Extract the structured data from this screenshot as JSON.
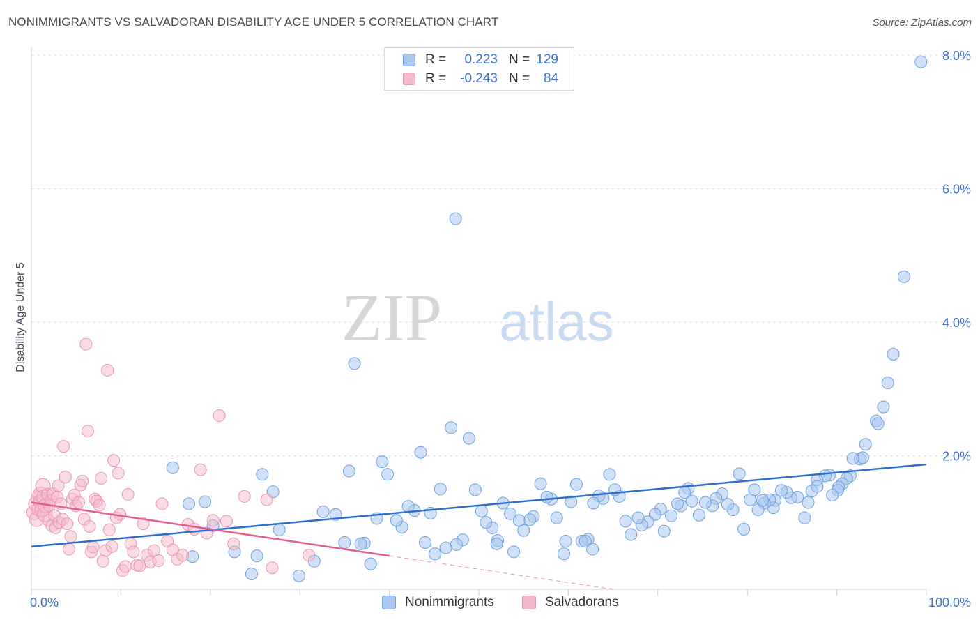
{
  "title": "NONIMMIGRANTS VS SALVADORAN DISABILITY AGE UNDER 5 CORRELATION CHART",
  "source": "Source: ZipAtlas.com",
  "watermark": {
    "zip": "ZIP",
    "atlas": "atlas"
  },
  "colors": {
    "blue_fill": "#a9c8f0",
    "blue_stroke": "#6f9fdc",
    "blue_line": "#2d6fcc",
    "pink_fill": "#f6b9cc",
    "pink_stroke": "#e995b1",
    "pink_line": "#e25f8d",
    "grid": "#dddddd",
    "tick_label": "#3a70c8"
  },
  "legend_top": {
    "rows": [
      {
        "r_label": "R =",
        "r_value": "0.223",
        "n_label": "N =",
        "n_value": "129"
      },
      {
        "r_label": "R =",
        "r_value": "-0.243",
        "n_label": "N =",
        "n_value": "84"
      }
    ]
  },
  "legend_bottom": {
    "items": [
      "Nonimmigrants",
      "Salvadorans"
    ]
  },
  "chart_data": {
    "type": "scatter",
    "title": "NONIMMIGRANTS VS SALVADORAN DISABILITY AGE UNDER 5 CORRELATION CHART",
    "xlabel": "",
    "ylabel": "Disability Age Under 5",
    "xlim": [
      0,
      100
    ],
    "ylim": [
      0,
      8.0
    ],
    "x_tick_labels": [
      "0.0%",
      "100.0%"
    ],
    "y_ticks": [
      2.0,
      4.0,
      6.0,
      8.0
    ],
    "y_tick_labels": [
      "2.0%",
      "4.0%",
      "6.0%",
      "8.0%"
    ],
    "grid": true,
    "legend_position": "bottom",
    "series": [
      {
        "name": "Nonimmigrants",
        "color": "#a9c8f0",
        "trend": {
          "x": [
            0,
            100
          ],
          "y": [
            0.64,
            1.87
          ]
        },
        "points": [
          [
            99.4,
            7.9
          ],
          [
            97.5,
            4.68
          ],
          [
            96.3,
            3.52
          ],
          [
            95.7,
            3.09
          ],
          [
            95.2,
            2.73
          ],
          [
            94.4,
            2.52
          ],
          [
            94.6,
            2.48
          ],
          [
            93.2,
            2.17
          ],
          [
            92.6,
            1.95
          ],
          [
            92.9,
            1.97
          ],
          [
            91.8,
            1.96
          ],
          [
            91.5,
            1.7
          ],
          [
            91.1,
            1.66
          ],
          [
            90.6,
            1.58
          ],
          [
            90.2,
            1.53
          ],
          [
            90.1,
            1.48
          ],
          [
            89.2,
            1.71
          ],
          [
            88.7,
            1.7
          ],
          [
            87.8,
            1.64
          ],
          [
            87.2,
            1.47
          ],
          [
            86.8,
            1.3
          ],
          [
            86.4,
            1.07
          ],
          [
            85.6,
            1.38
          ],
          [
            84.9,
            1.37
          ],
          [
            84.4,
            1.45
          ],
          [
            83.8,
            1.48
          ],
          [
            83.1,
            1.33
          ],
          [
            82.9,
            1.22
          ],
          [
            82.5,
            1.34
          ],
          [
            81.9,
            1.29
          ],
          [
            81.2,
            1.19
          ],
          [
            80.8,
            1.49
          ],
          [
            80.3,
            1.34
          ],
          [
            79.6,
            0.9
          ],
          [
            79.1,
            1.73
          ],
          [
            78.4,
            1.19
          ],
          [
            77.8,
            1.27
          ],
          [
            77.2,
            1.43
          ],
          [
            76.5,
            1.36
          ],
          [
            76.1,
            1.25
          ],
          [
            75.3,
            1.3
          ],
          [
            74.6,
            1.11
          ],
          [
            73.8,
            1.32
          ],
          [
            73.4,
            1.51
          ],
          [
            72.6,
            1.25
          ],
          [
            72.2,
            1.28
          ],
          [
            71.5,
            1.1
          ],
          [
            70.7,
            0.87
          ],
          [
            70.3,
            1.2
          ],
          [
            69.7,
            1.12
          ],
          [
            68.9,
            1.01
          ],
          [
            68.2,
            0.96
          ],
          [
            67.8,
            1.07
          ],
          [
            67.0,
            0.82
          ],
          [
            66.4,
            1.02
          ],
          [
            65.7,
            1.39
          ],
          [
            65.2,
            1.49
          ],
          [
            64.6,
            1.72
          ],
          [
            63.9,
            1.36
          ],
          [
            63.4,
            1.4
          ],
          [
            62.8,
            1.29
          ],
          [
            62.2,
            0.75
          ],
          [
            61.5,
            0.72
          ],
          [
            60.9,
            1.57
          ],
          [
            60.3,
            1.31
          ],
          [
            59.5,
            0.53
          ],
          [
            58.7,
            1.07
          ],
          [
            58.1,
            1.35
          ],
          [
            57.6,
            1.38
          ],
          [
            56.9,
            1.58
          ],
          [
            56.1,
            1.09
          ],
          [
            55.7,
            1.04
          ],
          [
            55.0,
            0.88
          ],
          [
            54.5,
            1.03
          ],
          [
            53.9,
            0.56
          ],
          [
            53.5,
            1.13
          ],
          [
            52.7,
            1.29
          ],
          [
            52.1,
            0.73
          ],
          [
            51.5,
            0.92
          ],
          [
            50.8,
            1.0
          ],
          [
            50.3,
            1.17
          ],
          [
            49.6,
            1.49
          ],
          [
            48.9,
            2.26
          ],
          [
            48.2,
            0.74
          ],
          [
            47.5,
            0.67
          ],
          [
            46.9,
            2.42
          ],
          [
            46.3,
            0.62
          ],
          [
            45.7,
            1.5
          ],
          [
            45.1,
            0.53
          ],
          [
            44.6,
            1.14
          ],
          [
            44.0,
            0.7
          ],
          [
            43.5,
            2.05
          ],
          [
            42.8,
            1.18
          ],
          [
            42.1,
            1.24
          ],
          [
            41.4,
            0.93
          ],
          [
            40.8,
            1.03
          ],
          [
            39.8,
            1.72
          ],
          [
            39.2,
            1.91
          ],
          [
            38.6,
            1.06
          ],
          [
            37.9,
            0.38
          ],
          [
            37.2,
            0.69
          ],
          [
            36.8,
            0.68
          ],
          [
            35.5,
            1.77
          ],
          [
            35.0,
            0.7
          ],
          [
            34.0,
            1.12
          ],
          [
            32.6,
            1.16
          ],
          [
            31.6,
            0.42
          ],
          [
            29.9,
            0.2
          ],
          [
            27.7,
            0.89
          ],
          [
            27.0,
            1.46
          ],
          [
            25.2,
            0.5
          ],
          [
            24.6,
            0.23
          ],
          [
            22.7,
            0.56
          ],
          [
            20.3,
            0.95
          ],
          [
            19.4,
            1.31
          ],
          [
            18.0,
            0.49
          ],
          [
            17.6,
            1.28
          ],
          [
            15.8,
            1.82
          ],
          [
            25.8,
            1.72
          ],
          [
            36.1,
            3.38
          ],
          [
            47.4,
            5.55
          ],
          [
            52.0,
            0.68
          ],
          [
            59.7,
            0.72
          ],
          [
            61.9,
            0.72
          ],
          [
            62.7,
            0.6
          ],
          [
            73.0,
            1.45
          ],
          [
            81.7,
            1.33
          ],
          [
            87.8,
            1.54
          ],
          [
            89.5,
            1.41
          ]
        ]
      },
      {
        "name": "Salvadorans",
        "color": "#f6b9cc",
        "trend": {
          "x": [
            0,
            40
          ],
          "y": [
            1.3,
            0.5
          ]
        },
        "trend_dashed": {
          "x": [
            40,
            65
          ],
          "y": [
            0.5,
            0.0
          ]
        },
        "points": [
          [
            0.3,
            1.15
          ],
          [
            0.5,
            1.28
          ],
          [
            0.6,
            1.05
          ],
          [
            0.8,
            1.36
          ],
          [
            0.9,
            1.2
          ],
          [
            1.0,
            1.42
          ],
          [
            1.1,
            1.31
          ],
          [
            1.2,
            1.19
          ],
          [
            1.3,
            1.55
          ],
          [
            1.4,
            1.38
          ],
          [
            1.5,
            1.12
          ],
          [
            1.6,
            1.25
          ],
          [
            1.8,
            1.42
          ],
          [
            1.9,
            1.03
          ],
          [
            2.0,
            1.25
          ],
          [
            2.2,
            1.33
          ],
          [
            2.3,
            0.95
          ],
          [
            2.4,
            1.43
          ],
          [
            2.6,
            1.1
          ],
          [
            2.7,
            0.92
          ],
          [
            2.9,
            1.38
          ],
          [
            3.0,
            1.55
          ],
          [
            3.1,
            1.0
          ],
          [
            3.3,
            1.28
          ],
          [
            3.5,
            1.05
          ],
          [
            3.6,
            2.14
          ],
          [
            3.8,
            1.68
          ],
          [
            4.0,
            0.98
          ],
          [
            4.2,
            0.6
          ],
          [
            4.4,
            0.79
          ],
          [
            4.6,
            1.35
          ],
          [
            4.8,
            1.41
          ],
          [
            5.0,
            1.25
          ],
          [
            5.3,
            1.3
          ],
          [
            5.5,
            1.56
          ],
          [
            5.7,
            1.62
          ],
          [
            5.9,
            1.05
          ],
          [
            6.1,
            3.67
          ],
          [
            6.3,
            2.37
          ],
          [
            6.5,
            0.94
          ],
          [
            6.7,
            0.56
          ],
          [
            6.9,
            0.63
          ],
          [
            7.1,
            1.35
          ],
          [
            7.3,
            1.32
          ],
          [
            7.6,
            1.26
          ],
          [
            7.8,
            1.66
          ],
          [
            8.0,
            0.42
          ],
          [
            8.3,
            0.58
          ],
          [
            8.5,
            3.28
          ],
          [
            8.7,
            0.89
          ],
          [
            9.0,
            0.64
          ],
          [
            9.2,
            1.93
          ],
          [
            9.5,
            1.07
          ],
          [
            9.7,
            1.74
          ],
          [
            9.9,
            1.12
          ],
          [
            10.2,
            0.28
          ],
          [
            10.5,
            0.34
          ],
          [
            10.8,
            1.42
          ],
          [
            11.1,
            0.68
          ],
          [
            11.4,
            0.56
          ],
          [
            11.8,
            0.36
          ],
          [
            12.1,
            0.35
          ],
          [
            12.5,
            0.98
          ],
          [
            12.9,
            0.51
          ],
          [
            13.3,
            0.41
          ],
          [
            13.7,
            0.58
          ],
          [
            14.2,
            0.43
          ],
          [
            14.6,
            1.28
          ],
          [
            15.2,
            0.72
          ],
          [
            15.8,
            0.59
          ],
          [
            16.3,
            0.45
          ],
          [
            16.9,
            0.51
          ],
          [
            17.5,
            0.97
          ],
          [
            18.2,
            0.9
          ],
          [
            18.9,
            1.79
          ],
          [
            19.6,
            0.84
          ],
          [
            20.3,
            1.03
          ],
          [
            21.0,
            2.6
          ],
          [
            21.8,
            1.02
          ],
          [
            22.6,
            0.68
          ],
          [
            23.8,
            1.39
          ],
          [
            26.3,
            1.34
          ],
          [
            26.9,
            0.32
          ],
          [
            31.0,
            0.51
          ]
        ]
      }
    ]
  }
}
